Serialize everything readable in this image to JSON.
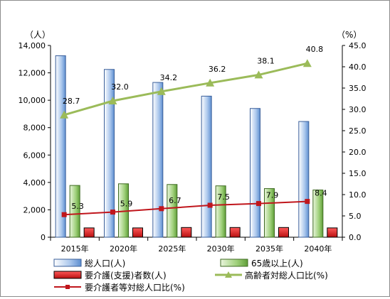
{
  "chart_data": {
    "type": "bar",
    "categories": [
      "2015年",
      "2020年",
      "2025年",
      "2030年",
      "2035年",
      "2040年"
    ],
    "y_left": {
      "unit": "（人）",
      "range": [
        0,
        14000
      ],
      "ticks": [
        "0",
        "2,000",
        "4,000",
        "6,000",
        "8,000",
        "10,000",
        "12,000",
        "14,000"
      ]
    },
    "y_right": {
      "unit": "（%）",
      "range": [
        0,
        45
      ],
      "ticks": [
        "0.0",
        "5.0",
        "10.0",
        "15.0",
        "20.0",
        "25.0",
        "30.0",
        "35.0",
        "40.0",
        "45.0"
      ]
    },
    "series": [
      {
        "name": "総人口(人)",
        "type": "bar",
        "axis": "left",
        "color": "#7aa6dc",
        "values": [
          13250,
          12250,
          11300,
          10300,
          9400,
          8450
        ]
      },
      {
        "name": "65歳以上(人)",
        "type": "bar",
        "axis": "left",
        "color": "#77b84a",
        "values": [
          3780,
          3900,
          3850,
          3750,
          3550,
          3450
        ]
      },
      {
        "name": "要介護(支援)者数(人)",
        "type": "bar",
        "axis": "left",
        "color": "#d81e1e",
        "values": [
          680,
          680,
          710,
          710,
          710,
          680
        ]
      },
      {
        "name": "高齢者対総人口比(%)",
        "type": "line",
        "axis": "right",
        "color": "#9bbb59",
        "values": [
          28.7,
          32.0,
          34.2,
          36.2,
          38.1,
          40.8
        ],
        "labels": [
          "28.7",
          "32.0",
          "34.2",
          "36.2",
          "38.1",
          "40.8"
        ]
      },
      {
        "name": "要介護者等対総人口比(%)",
        "type": "line",
        "axis": "right",
        "color": "#c0161c",
        "values": [
          5.3,
          5.9,
          6.7,
          7.5,
          7.9,
          8.4
        ],
        "labels": [
          "5.3",
          "5.9",
          "6.7",
          "7.5",
          "7.9",
          "8.4"
        ]
      }
    ],
    "grid": false,
    "legend_position": "bottom"
  }
}
